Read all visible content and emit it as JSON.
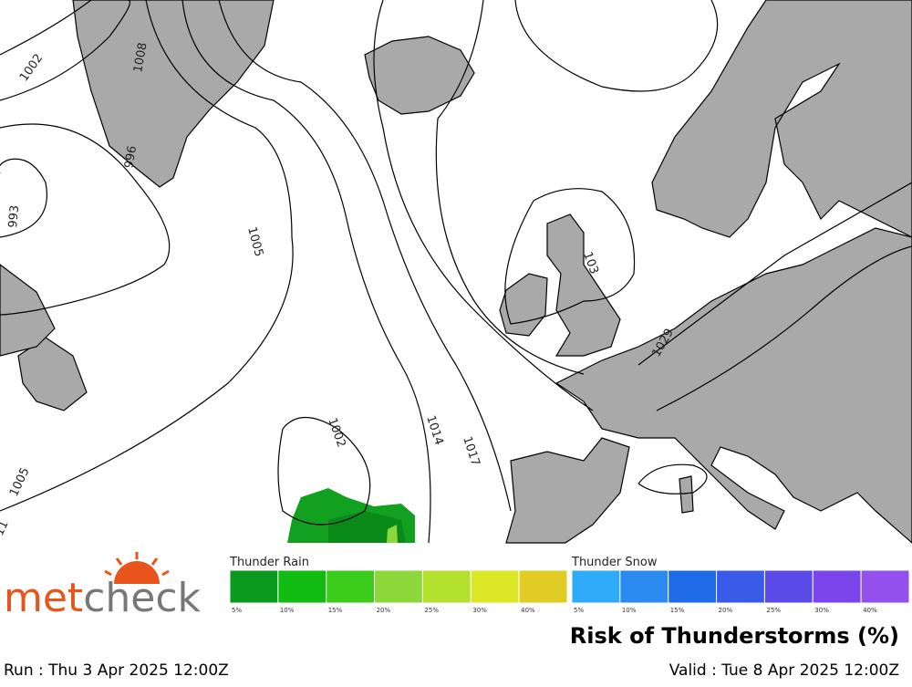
{
  "map": {
    "isobar_labels": [
      "1002",
      "1008",
      "996",
      "993",
      "1005",
      "1002",
      "1014",
      "1017",
      "103",
      "1029",
      "1005",
      "11"
    ]
  },
  "legend": {
    "rain": {
      "title": "Thunder Rain",
      "steps": [
        {
          "label": "5%",
          "color": "#0a9a1e"
        },
        {
          "label": "10%",
          "color": "#12bb12"
        },
        {
          "label": "15%",
          "color": "#3ccc1c"
        },
        {
          "label": "20%",
          "color": "#8cd83a"
        },
        {
          "label": "25%",
          "color": "#b4e02e"
        },
        {
          "label": "30%",
          "color": "#dce826"
        },
        {
          "label": "40%",
          "color": "#e0cc24"
        }
      ]
    },
    "snow": {
      "title": "Thunder Snow",
      "steps": [
        {
          "label": "5%",
          "color": "#2eaaf8"
        },
        {
          "label": "10%",
          "color": "#2a8af0"
        },
        {
          "label": "15%",
          "color": "#1f6ae6"
        },
        {
          "label": "20%",
          "color": "#3a5ae8"
        },
        {
          "label": "25%",
          "color": "#5a4ae8"
        },
        {
          "label": "30%",
          "color": "#7a46ec"
        },
        {
          "label": "40%",
          "color": "#9450ec"
        }
      ]
    },
    "title": "Risk of Thunderstorms (%)"
  },
  "logo": {
    "part1": "met",
    "part2": "check"
  },
  "footer": {
    "run": "Run : Thu 3 Apr 2025 12:00Z",
    "valid": "Valid : Tue 8 Apr 2025 12:00Z"
  }
}
